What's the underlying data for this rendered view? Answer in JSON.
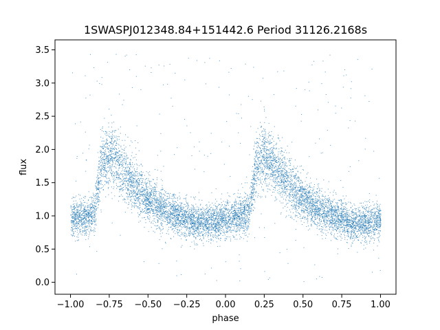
{
  "chart_data": {
    "type": "scatter",
    "title": "1SWASPJ012348.84+151442.6 Period 31126.2168s",
    "xlabel": "phase",
    "ylabel": "flux",
    "xlim": [
      -1.1,
      1.1
    ],
    "ylim": [
      -0.18,
      3.65
    ],
    "xticks": [
      -1.0,
      -0.75,
      -0.5,
      -0.25,
      0.0,
      0.25,
      0.5,
      0.75,
      1.0
    ],
    "xtick_labels": [
      "−1.00",
      "−0.75",
      "−0.50",
      "−0.25",
      "0.00",
      "0.25",
      "0.50",
      "0.75",
      "1.00"
    ],
    "yticks": [
      0.0,
      0.5,
      1.0,
      1.5,
      2.0,
      2.5,
      3.0,
      3.5
    ],
    "ytick_labels": [
      "0.0",
      "0.5",
      "1.0",
      "1.5",
      "2.0",
      "2.5",
      "3.0",
      "3.5"
    ],
    "grid": false,
    "point_color": "#1f77b4",
    "series": [
      {
        "profile_phase": [
          -1.0,
          -0.9,
          -0.85,
          -0.8,
          -0.75,
          -0.7,
          -0.6,
          -0.5,
          -0.4,
          -0.3,
          -0.2,
          -0.1,
          -0.05,
          0.0,
          0.1,
          0.15,
          0.2,
          0.25,
          0.3,
          0.4,
          0.5,
          0.6,
          0.7,
          0.8,
          0.9,
          0.95,
          1.0
        ],
        "profile_flux": [
          0.95,
          1.0,
          1.05,
          1.8,
          1.95,
          1.8,
          1.5,
          1.25,
          1.1,
          1.0,
          0.92,
          0.9,
          0.92,
          0.95,
          1.0,
          1.05,
          1.8,
          1.95,
          1.8,
          1.5,
          1.25,
          1.1,
          1.0,
          0.92,
          0.9,
          0.92,
          0.95
        ]
      }
    ]
  }
}
